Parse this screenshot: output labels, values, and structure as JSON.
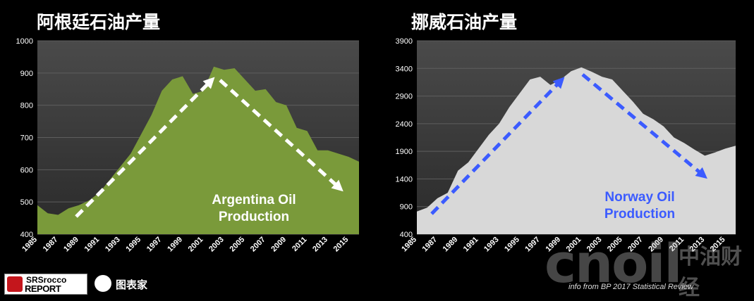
{
  "chart_data": [
    {
      "type": "area",
      "title": "阿根廷石油产量",
      "annotation": [
        "Argentina Oil",
        "Production"
      ],
      "fill_color": "#7a9a3a",
      "arrow_color": "#ffffff",
      "annotation_color": "#ffffff",
      "x": [
        1985,
        1986,
        1987,
        1988,
        1989,
        1990,
        1991,
        1992,
        1993,
        1994,
        1995,
        1996,
        1997,
        1998,
        1999,
        2000,
        2001,
        2002,
        2003,
        2004,
        2005,
        2006,
        2007,
        2008,
        2009,
        2010,
        2011,
        2012,
        2013,
        2014,
        2015,
        2016
      ],
      "values": [
        490,
        465,
        460,
        480,
        490,
        505,
        530,
        570,
        610,
        650,
        710,
        770,
        845,
        880,
        890,
        835,
        845,
        920,
        910,
        915,
        880,
        845,
        850,
        810,
        800,
        730,
        720,
        660,
        660,
        650,
        640,
        625
      ],
      "xticks": [
        "1985",
        "1987",
        "1989",
        "1991",
        "1993",
        "1995",
        "1997",
        "1999",
        "2001",
        "2003",
        "2005",
        "2007",
        "2009",
        "2011",
        "2013",
        "2015"
      ],
      "yticks": [
        "400",
        "500",
        "600",
        "700",
        "800",
        "900",
        "1000"
      ],
      "ylim": [
        400,
        1000
      ],
      "xlim": [
        1985,
        2016
      ],
      "grid": true
    },
    {
      "type": "area",
      "title": "挪威石油产量",
      "annotation": [
        "Norway Oil",
        "Production"
      ],
      "fill_color": "#d8d8d8",
      "arrow_color": "#3b5bff",
      "annotation_color": "#3b5bff",
      "x": [
        1985,
        1986,
        1987,
        1988,
        1989,
        1990,
        1991,
        1992,
        1993,
        1994,
        1995,
        1996,
        1997,
        1998,
        1999,
        2000,
        2001,
        2002,
        2003,
        2004,
        2005,
        2006,
        2007,
        2008,
        2009,
        2010,
        2011,
        2012,
        2013,
        2014,
        2015,
        2016
      ],
      "values": [
        810,
        880,
        1050,
        1150,
        1550,
        1700,
        1950,
        2200,
        2400,
        2700,
        2950,
        3200,
        3250,
        3100,
        3200,
        3350,
        3420,
        3340,
        3250,
        3200,
        3000,
        2800,
        2580,
        2480,
        2350,
        2150,
        2050,
        1930,
        1820,
        1880,
        1950,
        2000
      ],
      "xticks": [
        "1985",
        "1987",
        "1989",
        "1991",
        "1993",
        "1995",
        "1997",
        "1999",
        "2001",
        "2003",
        "2005",
        "2007",
        "2009",
        "2011",
        "2013",
        "2015"
      ],
      "yticks": [
        "400",
        "900",
        "1400",
        "1900",
        "2400",
        "2900",
        "3400",
        "3900"
      ],
      "ylim": [
        400,
        3900
      ],
      "xlim": [
        1985,
        2016
      ],
      "grid": true
    }
  ],
  "source_note": "info from BP 2017 Statistical Review",
  "logos": {
    "srrocco_line1": "SRSrocco",
    "srrocco_line2": "REPORT",
    "tubiaojia": "图表家"
  },
  "watermark": {
    "cnoil": "cnoil",
    "cjcj": "中油财经"
  }
}
